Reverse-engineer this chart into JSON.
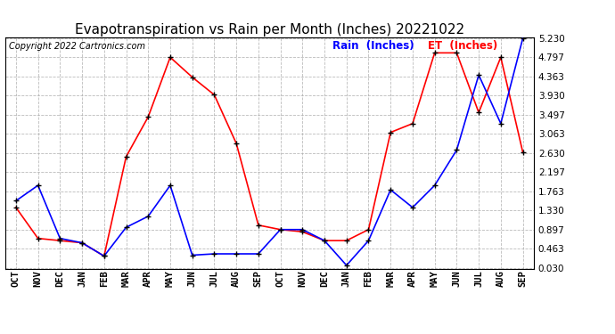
{
  "title": "Evapotranspiration vs Rain per Month (Inches) 20221022",
  "copyright": "Copyright 2022 Cartronics.com",
  "legend_rain": "Rain  (Inches)",
  "legend_et": "ET  (Inches)",
  "x_labels": [
    "OCT",
    "NOV",
    "DEC",
    "JAN",
    "FEB",
    "MAR",
    "APR",
    "MAY",
    "JUN",
    "JUL",
    "AUG",
    "SEP",
    "OCT",
    "NOV",
    "DEC",
    "JAN",
    "FEB",
    "MAR",
    "APR",
    "MAY",
    "JUN",
    "JUL",
    "AUG",
    "SEP"
  ],
  "rain_values": [
    1.55,
    1.9,
    0.7,
    0.6,
    0.3,
    0.95,
    1.2,
    1.9,
    0.32,
    0.35,
    0.35,
    0.35,
    0.9,
    0.9,
    0.65,
    0.09,
    0.65,
    1.8,
    1.4,
    1.9,
    2.7,
    4.4,
    3.3,
    5.23
  ],
  "et_values": [
    1.4,
    0.7,
    0.65,
    0.6,
    0.3,
    2.55,
    3.45,
    4.8,
    4.35,
    3.95,
    2.85,
    1.0,
    0.9,
    0.85,
    0.65,
    0.65,
    0.9,
    3.1,
    3.3,
    4.9,
    4.9,
    3.55,
    4.8,
    2.65
  ],
  "ymin": 0.03,
  "ymax": 5.23,
  "yticks": [
    0.03,
    0.463,
    0.897,
    1.33,
    1.763,
    2.197,
    2.63,
    3.063,
    3.497,
    3.93,
    4.363,
    4.797,
    5.23
  ],
  "rain_color": "blue",
  "et_color": "red",
  "bg_color": "#ffffff",
  "grid_color": "#aaaaaa",
  "title_fontsize": 11,
  "copyright_fontsize": 7,
  "tick_fontsize": 7.5,
  "legend_fontsize": 8.5
}
